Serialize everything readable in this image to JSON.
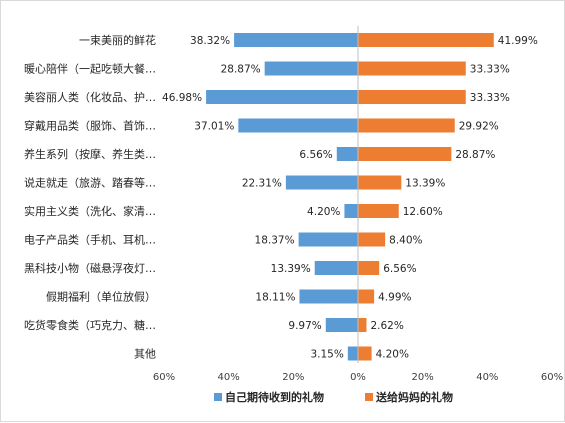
{
  "chart_data": {
    "type": "bar",
    "orientation": "horizontal-diverging",
    "categories": [
      "一束美丽的鲜花",
      "暖心陪伴（一起吃顿大餐…",
      "美容丽人类（化妆品、护…",
      "穿戴用品类（服饰、首饰…",
      "养生系列（按摩、养生类…",
      "说走就走（旅游、踏春等…",
      "实用主义类（洗化、家清…",
      "电子产品类（手机、耳机…",
      "黑科技小物（磁悬浮夜灯…",
      "假期福利（单位放假）",
      "吃货零食类（巧克力、糖…",
      "其他"
    ],
    "series": [
      {
        "name": "自己期待收到的礼物",
        "color": "#5b9bd5",
        "side": "left",
        "values": [
          38.32,
          28.87,
          46.98,
          37.01,
          6.56,
          22.31,
          4.2,
          18.37,
          13.39,
          18.11,
          9.97,
          3.15
        ],
        "labels": [
          "38.32%",
          "28.87%",
          "46.98%",
          "37.01%",
          "6.56%",
          "22.31%",
          "4.20%",
          "18.37%",
          "13.39%",
          "18.11%",
          "9.97%",
          "3.15%"
        ]
      },
      {
        "name": "送给妈妈的礼物",
        "color": "#ed7d31",
        "side": "right",
        "values": [
          41.99,
          33.33,
          33.33,
          29.92,
          28.87,
          13.39,
          12.6,
          8.4,
          6.56,
          4.99,
          2.62,
          4.2
        ],
        "labels": [
          "41.99%",
          "33.33%",
          "33.33%",
          "29.92%",
          "28.87%",
          "13.39%",
          "12.60%",
          "8.40%",
          "6.56%",
          "4.99%",
          "2.62%",
          "4.20%"
        ]
      }
    ],
    "x_ticks": [
      "60%",
      "40%",
      "20%",
      "0%",
      "20%",
      "40%",
      "60%"
    ],
    "xlim": [
      -60,
      60
    ],
    "legend_position": "bottom",
    "grid": false
  }
}
